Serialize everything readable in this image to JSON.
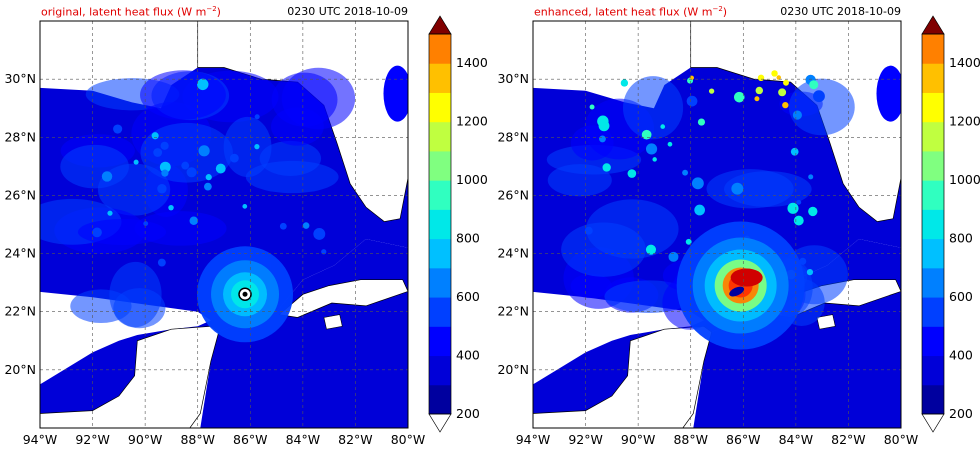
{
  "panels": [
    {
      "title_main": "original, latent heat flux (W m",
      "title_sup": "−2",
      "title_end": ")",
      "time": "0230 UTC 2018-10-09",
      "map_type": "filled contour",
      "variable": "latent heat flux",
      "storm_center": {
        "lon": -86.2,
        "lat": 22.6
      },
      "intensity": "weak"
    },
    {
      "title_main": "enhanced, latent heat flux (W m",
      "title_sup": "−2",
      "title_end": ")",
      "time": "0230 UTC 2018-10-09",
      "map_type": "filled contour",
      "variable": "latent heat flux",
      "storm_center": {
        "lon": -86.1,
        "lat": 22.9
      },
      "intensity": "strong"
    }
  ],
  "axes": {
    "lon_ticks": [
      "94°W",
      "92°W",
      "90°W",
      "88°W",
      "86°W",
      "84°W",
      "82°W",
      "80°W"
    ],
    "lon_values": [
      -94,
      -92,
      -90,
      -88,
      -86,
      -84,
      -82,
      -80
    ],
    "lat_ticks": [
      "30°N",
      "28°N",
      "26°N",
      "24°N",
      "22°N",
      "20°N"
    ],
    "lat_values": [
      30,
      28,
      26,
      24,
      22,
      20
    ],
    "lon_range": [
      -94,
      -80
    ],
    "lat_range": [
      18,
      32
    ],
    "grid": "dashed"
  },
  "colorbar": {
    "levels": [
      200,
      300,
      400,
      500,
      600,
      700,
      800,
      900,
      1000,
      1100,
      1200,
      1300,
      1400,
      1500
    ],
    "tick_labels": [
      "200",
      "400",
      "600",
      "800",
      "1000",
      "1200",
      "1400"
    ],
    "colors": [
      "#00009f",
      "#0000d8",
      "#0000ff",
      "#0040ff",
      "#0080ff",
      "#00c0ff",
      "#00e8e8",
      "#30ffc0",
      "#80ff80",
      "#c0ff40",
      "#ffff00",
      "#ffc000",
      "#ff8000",
      "#ff3000",
      "#d00000"
    ],
    "extend": "both",
    "over_color": "#800000",
    "under_color": "#ffffff"
  },
  "map_colors": {
    "land": "#ffffff",
    "ocean_base": "#0000d8",
    "coast": "#000000",
    "grid": "#555555"
  }
}
